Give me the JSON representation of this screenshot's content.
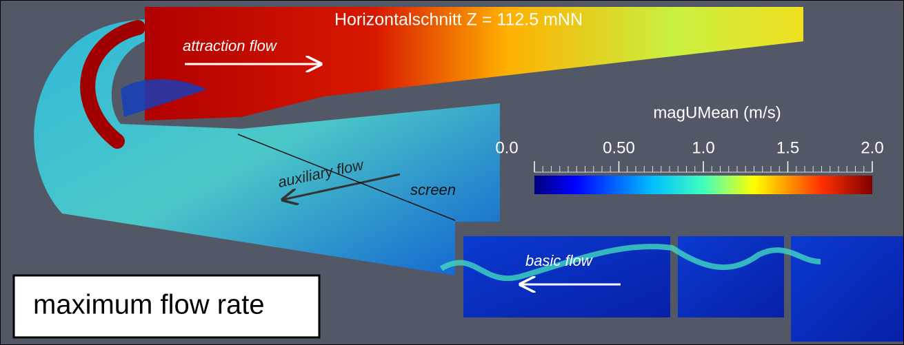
{
  "title": "Horizontalschnitt Z = 112.5 mNN",
  "colorbar": {
    "title": "magUMean (m/s)",
    "range": [
      0,
      2
    ],
    "ticks": [
      {
        "value": 0,
        "label": "0.0"
      },
      {
        "value": 0.5,
        "label": "0.50"
      },
      {
        "value": 1,
        "label": "1.0"
      },
      {
        "value": 1.5,
        "label": "1.5"
      },
      {
        "value": 2,
        "label": "2.0"
      }
    ]
  },
  "annotations": {
    "attraction": "attraction flow",
    "auxiliary": "auxiliary flow",
    "screen": "screen",
    "basic": "basic flow"
  },
  "label": "maximum flow rate"
}
